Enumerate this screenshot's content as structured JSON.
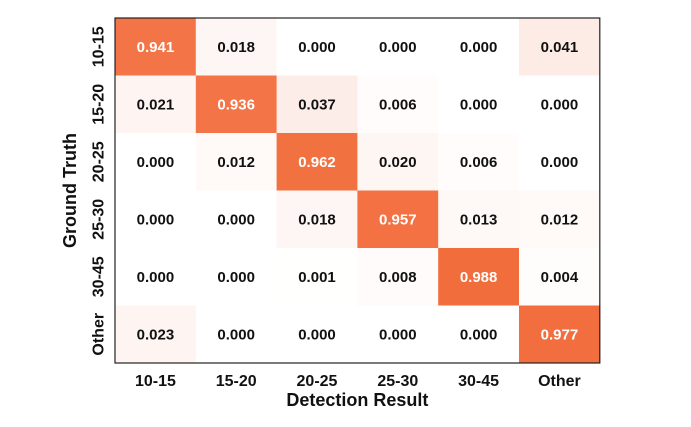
{
  "chart_data": {
    "type": "heatmap",
    "xlabel": "Detection Result",
    "ylabel": "Ground Truth",
    "x_categories": [
      "10-15",
      "15-20",
      "20-25",
      "25-30",
      "30-45",
      "Other"
    ],
    "y_categories": [
      "10-15",
      "15-20",
      "20-25",
      "25-30",
      "30-45",
      "Other"
    ],
    "values": [
      [
        0.941,
        0.018,
        0.0,
        0.0,
        0.0,
        0.041
      ],
      [
        0.021,
        0.936,
        0.037,
        0.006,
        0.0,
        0.0
      ],
      [
        0.0,
        0.012,
        0.962,
        0.02,
        0.006,
        0.0
      ],
      [
        0.0,
        0.0,
        0.018,
        0.957,
        0.013,
        0.012
      ],
      [
        0.0,
        0.0,
        0.001,
        0.008,
        0.988,
        0.004
      ],
      [
        0.023,
        0.0,
        0.0,
        0.0,
        0.0,
        0.977
      ]
    ],
    "value_range": [
      0,
      1
    ],
    "colors": {
      "low": "#ffffff",
      "high": "#f26b3a",
      "text_dark": "#111111",
      "text_light": "#ffffff"
    }
  }
}
